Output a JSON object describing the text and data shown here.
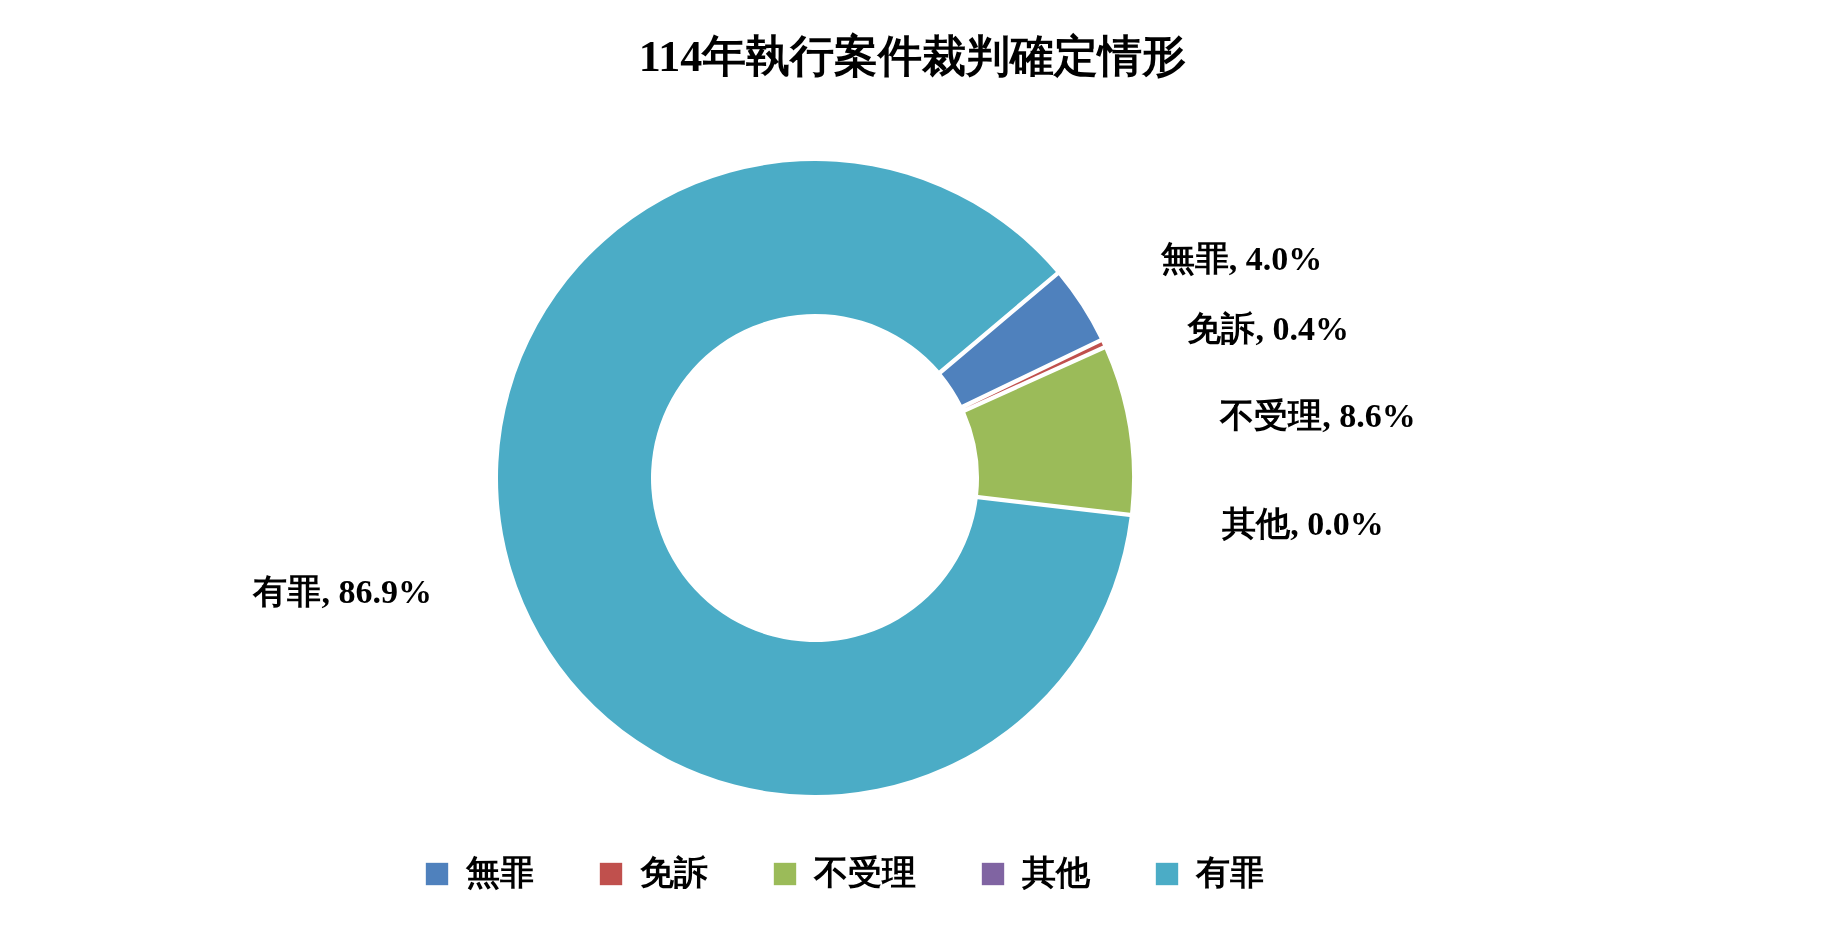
{
  "chart_data": {
    "type": "donut",
    "title": "114年執行案件裁判確定情形",
    "categories": [
      "無罪",
      "免訴",
      "不受理",
      "其他",
      "有罪"
    ],
    "values": [
      4.0,
      0.4,
      8.6,
      0.0,
      86.9
    ],
    "colors": [
      "#4f81bd",
      "#c0504d",
      "#9bbb59",
      "#8064a2",
      "#4bacc6"
    ],
    "value_labels": [
      "無罪, 4.0%",
      "免訴, 0.4%",
      "不受理, 8.6%",
      "其他, 0.0%",
      "有罪, 86.9%"
    ],
    "legend": "bottom"
  }
}
